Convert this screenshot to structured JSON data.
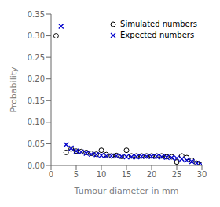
{
  "chart_data": {
    "type": "scatter",
    "xlabel": "Tumour diameter in mm",
    "ylabel": "Probability",
    "xlim": [
      0,
      30
    ],
    "ylim": [
      0,
      0.35
    ],
    "xticks": [
      0,
      5,
      10,
      15,
      20,
      25,
      30
    ],
    "yticks": [
      {
        "value": 0.0,
        "label": "0.00"
      },
      0.05,
      {
        "value": 0.1,
        "label": "0.10"
      },
      0.15,
      {
        "value": 0.2,
        "label": "0.20"
      },
      0.25,
      {
        "value": 0.3,
        "label": "0.30"
      },
      0.35
    ],
    "grid": false,
    "legend": "upper right",
    "series": [
      {
        "name": "Simulated numbers",
        "color": "#000000",
        "marker": "circle",
        "x": [
          1,
          3,
          4,
          5,
          6,
          7,
          8,
          9,
          10,
          11,
          12,
          13,
          14,
          15,
          16,
          17,
          18,
          19,
          20,
          21,
          22,
          23,
          24,
          25,
          26,
          27,
          28,
          29,
          30
        ],
        "values": [
          0.3,
          0.03,
          0.038,
          0.033,
          0.032,
          0.03,
          0.028,
          0.026,
          0.035,
          0.025,
          0.022,
          0.023,
          0.021,
          0.035,
          0.022,
          0.022,
          0.022,
          0.022,
          0.022,
          0.022,
          0.022,
          0.02,
          0.02,
          0.008,
          0.022,
          0.018,
          0.012,
          0.005,
          0.002
        ]
      },
      {
        "name": "Expected numbers",
        "color": "#0000cc",
        "marker": "x",
        "x": [
          2,
          3,
          4,
          5,
          6,
          7,
          8,
          9,
          10,
          11,
          12,
          13,
          14,
          15,
          16,
          17,
          18,
          19,
          20,
          21,
          22,
          23,
          24,
          25,
          26,
          27,
          28,
          29,
          30
        ],
        "values": [
          0.322,
          0.048,
          0.04,
          0.033,
          0.031,
          0.028,
          0.026,
          0.025,
          0.023,
          0.022,
          0.022,
          0.022,
          0.021,
          0.02,
          0.02,
          0.02,
          0.021,
          0.021,
          0.021,
          0.021,
          0.02,
          0.019,
          0.018,
          0.017,
          0.015,
          0.012,
          0.009,
          0.005,
          0.002
        ]
      }
    ]
  }
}
